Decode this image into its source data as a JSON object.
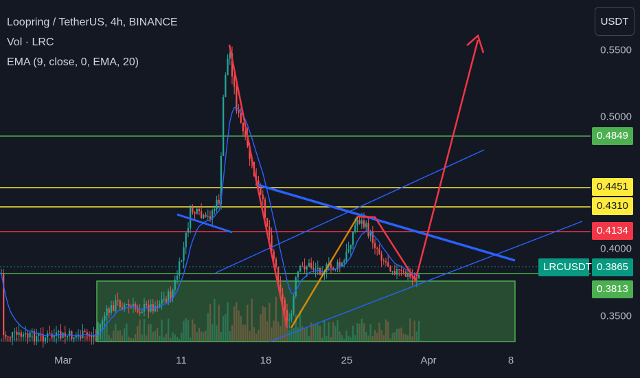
{
  "legend": {
    "title": "Loopring / TetherUS, 4h, BINANCE",
    "volume": "Vol · LRC",
    "ema": "EMA (9, close, 0, EMA, 20)"
  },
  "unit_button": "USDT",
  "price_axis": {
    "ticks": [
      "0.5500",
      "0.5000",
      "0.4000",
      "0.3500"
    ]
  },
  "price_badges": [
    {
      "value": "0.4849",
      "color": "#4caf50",
      "text_color": "#ffffff"
    },
    {
      "value": "0.4451",
      "color": "#ffeb3b",
      "text_color": "#131722"
    },
    {
      "value": "0.4310",
      "color": "#ffeb3b",
      "text_color": "#131722"
    },
    {
      "value": "0.4134",
      "color": "#f23645",
      "text_color": "#ffffff"
    },
    {
      "value": "0.3865",
      "color": "#089981",
      "text_color": "#ffffff"
    },
    {
      "value": "0.3813",
      "color": "#4caf50",
      "text_color": "#ffffff"
    }
  ],
  "symbol_badge": "LRCUSDT",
  "time_axis": {
    "ticks": [
      "Mar",
      "11",
      "18",
      "25",
      "Apr",
      "8"
    ]
  },
  "colors": {
    "up": "#26a69a",
    "down": "#ef5350",
    "ema": "#2962ff",
    "support_zone": "#4caf50",
    "resistance": "#ffeb3b"
  }
}
